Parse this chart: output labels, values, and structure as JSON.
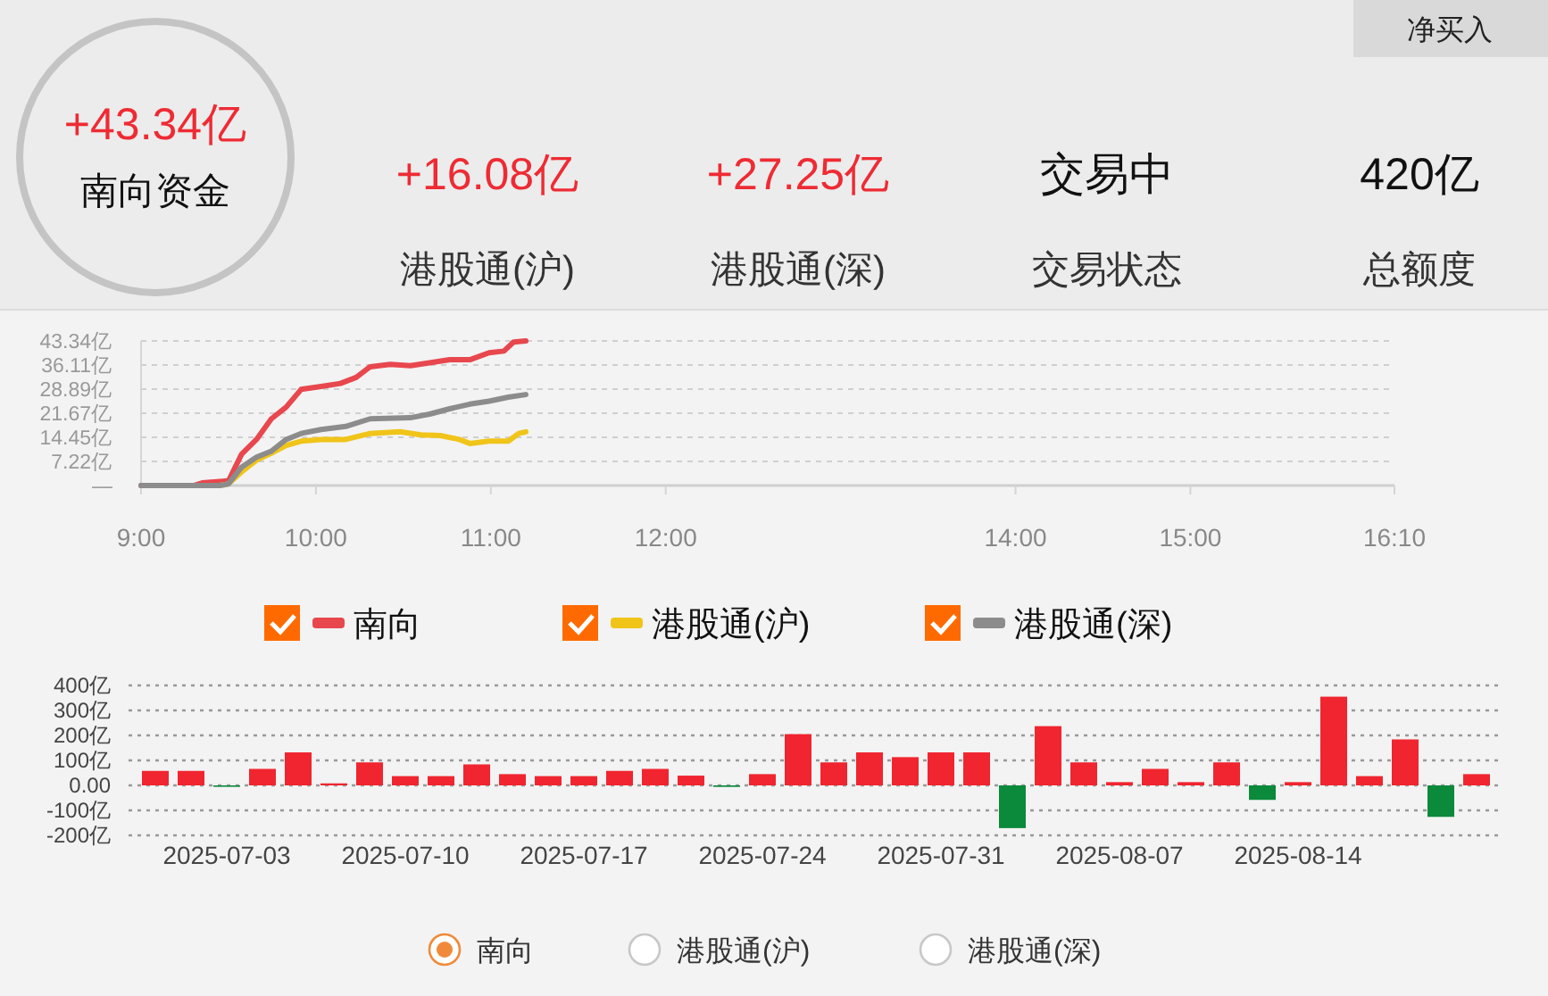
{
  "chart_data": [
    {
      "type": "other",
      "categories": [
        "南向资金",
        "港股通(沪)",
        "港股通(深)",
        "交易状态",
        "总额度"
      ],
      "value_labels": [
        "+43.34亿",
        "+16.08亿",
        "+27.25亿",
        "交易中",
        "420亿"
      ],
      "colors": [
        "#ee2b34",
        "#ee2b34",
        "#ee2b34",
        "#111111",
        "#111111"
      ],
      "annotations": [
        "净买入"
      ]
    },
    {
      "type": "line",
      "line_style": "solid",
      "grid": "y",
      "legend": "bottom",
      "xlim": [
        9,
        16.1667
      ],
      "xticks": [
        {
          "value": 9,
          "label": "9:00"
        },
        {
          "value": 10,
          "label": "10:00"
        },
        {
          "value": 11,
          "label": "11:00"
        },
        {
          "value": 12,
          "label": "12:00"
        },
        {
          "value": 14,
          "label": "14:00"
        },
        {
          "value": 15,
          "label": "15:00"
        },
        {
          "value": 16.1667,
          "label": "16:10"
        }
      ],
      "ylim": [
        0,
        43.34
      ],
      "yticks": [
        {
          "value": 0,
          "label": "—"
        },
        {
          "value": 7.22,
          "label": "7.22亿"
        },
        {
          "value": 14.45,
          "label": "14.45亿"
        },
        {
          "value": 21.67,
          "label": "21.67亿"
        },
        {
          "value": 28.89,
          "label": "28.89亿"
        },
        {
          "value": 36.11,
          "label": "36.11亿"
        },
        {
          "value": 43.34,
          "label": "43.34亿"
        }
      ],
      "series": [
        {
          "name": "南向",
          "color": "#e8474e",
          "x": [
            9,
            9.3,
            9.35,
            9.5,
            9.575,
            9.66,
            9.745,
            9.83,
            9.915,
            10.03,
            10.14,
            10.23,
            10.31,
            10.425,
            10.54,
            10.65,
            10.765,
            10.88,
            10.99,
            11.075,
            11.13,
            11.2
          ],
          "values": [
            0,
            0,
            0.8,
            1.4,
            9.4,
            13.8,
            20.0,
            23.5,
            28.8,
            29.7,
            30.6,
            32.4,
            35.6,
            36.3,
            35.9,
            36.8,
            37.7,
            37.7,
            39.8,
            40.3,
            43.0,
            43.34
          ]
        },
        {
          "name": "港股通(沪)",
          "color": "#f0c419",
          "x": [
            9.45,
            9.5,
            9.575,
            9.66,
            9.745,
            9.83,
            9.915,
            10.03,
            10.17,
            10.31,
            10.48,
            10.6,
            10.71,
            10.82,
            10.88,
            10.99,
            11.1,
            11.16,
            11.2
          ],
          "values": [
            0,
            0.5,
            4.1,
            7.6,
            9.7,
            12.0,
            13.3,
            13.8,
            13.8,
            15.6,
            16.1,
            15.2,
            15.0,
            13.8,
            12.6,
            13.3,
            13.3,
            15.6,
            16.08
          ]
        },
        {
          "name": "港股通(深)",
          "color": "#8c8c8c",
          "x": [
            9,
            9.3,
            9.45,
            9.5,
            9.575,
            9.66,
            9.745,
            9.83,
            9.915,
            10.03,
            10.17,
            10.31,
            10.54,
            10.65,
            10.765,
            10.88,
            10.99,
            11.1,
            11.2
          ],
          "values": [
            0,
            0,
            0,
            0.5,
            5.5,
            8.5,
            10.3,
            13.8,
            15.6,
            16.8,
            17.7,
            20.0,
            20.3,
            21.4,
            23.0,
            24.4,
            25.3,
            26.5,
            27.25
          ]
        }
      ]
    },
    {
      "type": "bar",
      "grid": "y",
      "legend": "bottom",
      "categories": [
        null,
        null,
        "2025-07-03",
        null,
        null,
        null,
        null,
        "2025-07-10",
        null,
        null,
        null,
        null,
        "2025-07-17",
        null,
        null,
        null,
        null,
        "2025-07-24",
        null,
        null,
        null,
        null,
        "2025-07-31",
        null,
        null,
        null,
        null,
        "2025-08-07",
        null,
        null,
        null,
        null,
        "2025-08-14",
        null,
        null,
        null,
        null,
        null
      ],
      "ylim": [
        -200,
        400
      ],
      "yticks": [
        {
          "value": 400,
          "label": "400亿"
        },
        {
          "value": 300,
          "label": "300亿"
        },
        {
          "value": 200,
          "label": "200亿"
        },
        {
          "value": 100,
          "label": "100亿"
        },
        {
          "value": 0,
          "label": "0.00"
        },
        {
          "value": -100,
          "label": "-100亿"
        },
        {
          "value": -200,
          "label": "-200亿"
        }
      ],
      "annotations": [
        "港股通(沪)",
        "港股通(深)"
      ],
      "series": [
        {
          "name": "南向",
          "values": [
            58,
            58,
            -5,
            66,
            132,
            8,
            92,
            37,
            37,
            84,
            45,
            37,
            37,
            58,
            66,
            39,
            -6,
            45,
            205,
            92,
            132,
            113,
            132,
            132,
            -171,
            237,
            92,
            13,
            66,
            13,
            92,
            -58,
            13,
            355,
            37,
            184,
            -126,
            45
          ],
          "colors": [
            "#f0252f",
            "#f0252f",
            "#0a8a3a",
            "#f0252f",
            "#f0252f",
            "#f0252f",
            "#f0252f",
            "#f0252f",
            "#f0252f",
            "#f0252f",
            "#f0252f",
            "#f0252f",
            "#f0252f",
            "#f0252f",
            "#f0252f",
            "#f0252f",
            "#0a8a3a",
            "#f0252f",
            "#f0252f",
            "#f0252f",
            "#f0252f",
            "#f0252f",
            "#f0252f",
            "#f0252f",
            "#0a8a3a",
            "#f0252f",
            "#f0252f",
            "#f0252f",
            "#f0252f",
            "#f0252f",
            "#f0252f",
            "#0a8a3a",
            "#f0252f",
            "#f0252f",
            "#f0252f",
            "#f0252f",
            "#0a8a3a",
            "#f0252f"
          ]
        }
      ]
    }
  ]
}
